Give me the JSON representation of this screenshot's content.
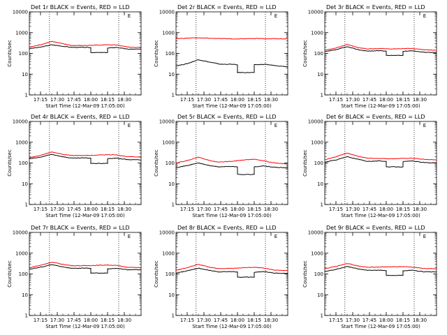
{
  "colors": {
    "events": "#000000",
    "lld": "#ff0000",
    "axis": "#000000"
  },
  "shared": {
    "xlabel": "Start Time (12-Mar-09 17:05:00)",
    "ylabel": "Counts/sec",
    "x_tick_labels": [
      "17:15",
      "17:30",
      "17:45",
      "18:00",
      "18:15",
      "18:30"
    ],
    "y_tick_labels": [
      "1",
      "10",
      "100",
      "1000",
      "10000"
    ],
    "corner_mark": "E"
  },
  "chart_data": [
    {
      "type": "line",
      "title": "Det 1r BLACK = Events, RED = LLD",
      "xlabel": "Start Time (12-Mar-09 17:05:00)",
      "ylabel": "Counts/sec",
      "x_unit": "minutes after 17:05:00",
      "xlim": [
        0,
        100
      ],
      "ylim": [
        1,
        10000
      ],
      "yscale": "log",
      "x_ticks": [
        10,
        25,
        40,
        55,
        70,
        85
      ],
      "markers": [
        18,
        80
      ],
      "series": [
        {
          "name": "Events",
          "color": "black",
          "x": [
            0,
            10,
            20,
            30,
            38,
            50,
            55,
            55,
            70,
            70,
            78,
            88,
            100
          ],
          "y": [
            170,
            200,
            260,
            220,
            195,
            195,
            190,
            110,
            110,
            180,
            195,
            160,
            160
          ]
        },
        {
          "name": "LLD",
          "color": "red",
          "x": [
            0,
            10,
            20,
            30,
            38,
            50,
            60,
            70,
            78,
            88,
            100
          ],
          "y": [
            200,
            260,
            380,
            290,
            240,
            240,
            250,
            260,
            250,
            200,
            190
          ]
        }
      ]
    },
    {
      "type": "line",
      "title": "Det 2r BLACK = Events, RED = LLD",
      "xlabel": "Start Time (12-Mar-09 17:05:00)",
      "ylabel": "Counts/sec",
      "x_unit": "minutes after 17:05:00",
      "xlim": [
        0,
        100
      ],
      "ylim": [
        1,
        10000
      ],
      "yscale": "log",
      "x_ticks": [
        10,
        25,
        40,
        55,
        70,
        85
      ],
      "markers": [
        18,
        80
      ],
      "series": [
        {
          "name": "Events",
          "color": "black",
          "x": [
            0,
            10,
            20,
            30,
            40,
            50,
            55,
            55,
            70,
            70,
            80,
            90,
            100
          ],
          "y": [
            25,
            32,
            50,
            38,
            30,
            30,
            28,
            12,
            12,
            28,
            30,
            25,
            23
          ]
        },
        {
          "name": "LLD",
          "color": "red",
          "x": [
            0,
            10,
            20,
            35,
            50,
            60,
            70,
            85,
            100
          ],
          "y": [
            520,
            540,
            560,
            530,
            500,
            500,
            520,
            510,
            500
          ]
        }
      ]
    },
    {
      "type": "line",
      "title": "Det 3r BLACK = Events, RED = LLD",
      "xlabel": "Start Time (12-Mar-09 17:05:00)",
      "ylabel": "Counts/sec",
      "x_unit": "minutes after 17:05:00",
      "xlim": [
        0,
        100
      ],
      "ylim": [
        1,
        10000
      ],
      "yscale": "log",
      "x_ticks": [
        10,
        25,
        40,
        55,
        70,
        85
      ],
      "markers": [
        18,
        80
      ],
      "series": [
        {
          "name": "Events",
          "color": "black",
          "x": [
            0,
            10,
            20,
            30,
            38,
            50,
            55,
            55,
            70,
            70,
            78,
            88,
            100
          ],
          "y": [
            120,
            150,
            210,
            150,
            130,
            135,
            130,
            80,
            80,
            125,
            135,
            115,
            110
          ]
        },
        {
          "name": "LLD",
          "color": "red",
          "x": [
            0,
            10,
            20,
            30,
            38,
            50,
            60,
            70,
            78,
            88,
            100
          ],
          "y": [
            140,
            180,
            270,
            190,
            165,
            170,
            165,
            170,
            175,
            150,
            140
          ]
        }
      ]
    },
    {
      "type": "line",
      "title": "Det 4r BLACK = Events, RED = LLD",
      "xlabel": "Start Time (12-Mar-09 17:05:00)",
      "ylabel": "Counts/sec",
      "x_unit": "minutes after 17:05:00",
      "xlim": [
        0,
        100
      ],
      "ylim": [
        1,
        10000
      ],
      "yscale": "log",
      "x_ticks": [
        10,
        25,
        40,
        55,
        70,
        85
      ],
      "markers": [
        18,
        80
      ],
      "series": [
        {
          "name": "Events",
          "color": "black",
          "x": [
            0,
            10,
            20,
            30,
            38,
            50,
            55,
            55,
            70,
            70,
            78,
            88,
            100
          ],
          "y": [
            160,
            190,
            260,
            200,
            170,
            175,
            170,
            95,
            95,
            160,
            170,
            145,
            140
          ]
        },
        {
          "name": "LLD",
          "color": "red",
          "x": [
            0,
            10,
            20,
            30,
            38,
            50,
            60,
            70,
            78,
            88,
            100
          ],
          "y": [
            180,
            230,
            340,
            260,
            230,
            230,
            240,
            250,
            245,
            200,
            190
          ]
        }
      ]
    },
    {
      "type": "line",
      "title": "Det 5r BLACK = Events, RED = LLD",
      "xlabel": "Start Time (12-Mar-09 17:05:00)",
      "ylabel": "Counts/sec",
      "x_unit": "minutes after 17:05:00",
      "xlim": [
        0,
        100
      ],
      "ylim": [
        1,
        10000
      ],
      "yscale": "log",
      "x_ticks": [
        10,
        25,
        40,
        55,
        70,
        85
      ],
      "markers": [
        18,
        80
      ],
      "series": [
        {
          "name": "Events",
          "color": "black",
          "x": [
            0,
            10,
            20,
            30,
            38,
            50,
            55,
            55,
            70,
            70,
            78,
            88,
            100
          ],
          "y": [
            60,
            75,
            100,
            75,
            65,
            68,
            65,
            28,
            28,
            65,
            72,
            62,
            58
          ]
        },
        {
          "name": "LLD",
          "color": "red",
          "x": [
            0,
            10,
            20,
            30,
            38,
            50,
            60,
            70,
            78,
            88,
            100
          ],
          "y": [
            100,
            130,
            190,
            130,
            110,
            120,
            140,
            150,
            130,
            100,
            90
          ]
        }
      ]
    },
    {
      "type": "line",
      "title": "Det 6r BLACK = Events, RED = LLD",
      "xlabel": "Start Time (12-Mar-09 17:05:00)",
      "ylabel": "Counts/sec",
      "x_unit": "minutes after 17:05:00",
      "xlim": [
        0,
        100
      ],
      "ylim": [
        1,
        10000
      ],
      "yscale": "log",
      "x_ticks": [
        10,
        25,
        40,
        55,
        70,
        85
      ],
      "markers": [
        18,
        80
      ],
      "series": [
        {
          "name": "Events",
          "color": "black",
          "x": [
            0,
            10,
            20,
            30,
            38,
            50,
            55,
            55,
            70,
            70,
            78,
            88,
            100
          ],
          "y": [
            110,
            140,
            200,
            150,
            120,
            125,
            120,
            65,
            65,
            115,
            125,
            105,
            100
          ]
        },
        {
          "name": "LLD",
          "color": "red",
          "x": [
            0,
            10,
            20,
            30,
            38,
            50,
            60,
            70,
            78,
            88,
            100
          ],
          "y": [
            140,
            200,
            300,
            210,
            170,
            165,
            160,
            165,
            170,
            150,
            140
          ]
        }
      ]
    },
    {
      "type": "line",
      "title": "Det 7r BLACK = Events, RED = LLD",
      "xlabel": "Start Time (12-Mar-09 17:05:00)",
      "ylabel": "Counts/sec",
      "x_unit": "minutes after 17:05:00",
      "xlim": [
        0,
        100
      ],
      "ylim": [
        1,
        10000
      ],
      "yscale": "log",
      "x_ticks": [
        10,
        25,
        40,
        55,
        70,
        85
      ],
      "markers": [
        18,
        80
      ],
      "series": [
        {
          "name": "Events",
          "color": "black",
          "x": [
            0,
            10,
            20,
            30,
            38,
            50,
            55,
            55,
            70,
            70,
            78,
            88,
            100
          ],
          "y": [
            170,
            210,
            280,
            220,
            185,
            190,
            185,
            110,
            110,
            175,
            185,
            160,
            160
          ]
        },
        {
          "name": "LLD",
          "color": "red",
          "x": [
            0,
            10,
            20,
            30,
            38,
            50,
            60,
            70,
            78,
            88,
            100
          ],
          "y": [
            200,
            260,
            370,
            290,
            250,
            250,
            260,
            270,
            255,
            210,
            200
          ]
        }
      ]
    },
    {
      "type": "line",
      "title": "Det 8r BLACK = Events, RED = LLD",
      "xlabel": "Start Time (12-Mar-09 17:05:00)",
      "ylabel": "Counts/sec",
      "x_unit": "minutes after 17:05:00",
      "xlim": [
        0,
        100
      ],
      "ylim": [
        1,
        10000
      ],
      "yscale": "log",
      "x_ticks": [
        10,
        25,
        40,
        55,
        70,
        85
      ],
      "markers": [
        18,
        80
      ],
      "series": [
        {
          "name": "Events",
          "color": "black",
          "x": [
            0,
            10,
            20,
            30,
            38,
            50,
            55,
            55,
            70,
            70,
            78,
            88,
            100
          ],
          "y": [
            110,
            140,
            190,
            150,
            125,
            130,
            125,
            70,
            70,
            120,
            130,
            110,
            105
          ]
        },
        {
          "name": "LLD",
          "color": "red",
          "x": [
            0,
            10,
            20,
            30,
            38,
            50,
            60,
            70,
            78,
            88,
            100
          ],
          "y": [
            150,
            200,
            290,
            210,
            180,
            185,
            200,
            210,
            190,
            155,
            145
          ]
        }
      ]
    },
    {
      "type": "line",
      "title": "Det 9r BLACK = Events, RED = LLD",
      "xlabel": "Start Time (12-Mar-09 17:05:00)",
      "ylabel": "Counts/sec",
      "x_unit": "minutes after 17:05:00",
      "xlim": [
        0,
        100
      ],
      "ylim": [
        1,
        10000
      ],
      "yscale": "log",
      "x_ticks": [
        10,
        25,
        40,
        55,
        70,
        85
      ],
      "markers": [
        18,
        80
      ],
      "series": [
        {
          "name": "Events",
          "color": "black",
          "x": [
            0,
            10,
            20,
            30,
            38,
            50,
            55,
            55,
            70,
            70,
            78,
            88,
            100
          ],
          "y": [
            130,
            165,
            230,
            175,
            150,
            150,
            145,
            85,
            85,
            140,
            150,
            128,
            125
          ]
        },
        {
          "name": "LLD",
          "color": "red",
          "x": [
            0,
            10,
            20,
            30,
            38,
            50,
            60,
            70,
            78,
            88,
            100
          ],
          "y": [
            180,
            230,
            320,
            240,
            210,
            215,
            220,
            225,
            215,
            185,
            175
          ]
        }
      ]
    }
  ]
}
